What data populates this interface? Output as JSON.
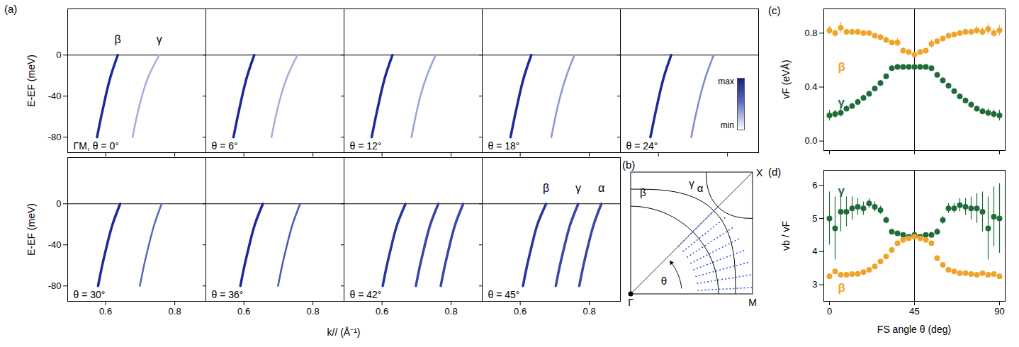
{
  "chart_data": [
    {
      "panel": "(a)",
      "type": "line",
      "xlabel": "k// (Å⁻¹)",
      "ylabel": "E-EF (meV)",
      "xlim": [
        0.49,
        0.89
      ],
      "ylim": [
        -95,
        45
      ],
      "xticks": [
        0.6,
        0.8
      ],
      "yticks": [
        0,
        -40,
        -80
      ],
      "hline": 0,
      "panels": [
        {
          "title": "ΓM, θ = 0°",
          "tick_labels": "y",
          "series": [
            {
              "name": "β",
              "color": "#1b2a9a",
              "x": [
                0.635,
                0.615,
                0.6,
                0.587,
                0.575
              ],
              "y": [
                0,
                -20,
                -40,
                -60,
                -80
              ]
            },
            {
              "name": "γ",
              "color": "#a3acdc",
              "x": [
                0.755,
                0.725,
                0.705,
                0.69,
                0.678
              ],
              "y": [
                0,
                -20,
                -40,
                -60,
                -80
              ]
            }
          ]
        },
        {
          "title": "θ = 6°",
          "tick_labels": false,
          "series": [
            {
              "color": "#1b2a9a",
              "x": [
                0.63,
                0.61,
                0.595,
                0.582,
                0.57
              ],
              "y": [
                0,
                -20,
                -40,
                -60,
                -80
              ]
            },
            {
              "color": "#a3acdc",
              "x": [
                0.755,
                0.727,
                0.707,
                0.692,
                0.68
              ],
              "y": [
                0,
                -20,
                -40,
                -60,
                -80
              ]
            }
          ]
        },
        {
          "title": "θ = 12°",
          "tick_labels": false,
          "series": [
            {
              "color": "#1b2a9a",
              "x": [
                0.63,
                0.61,
                0.595,
                0.582,
                0.57
              ],
              "y": [
                0,
                -20,
                -40,
                -60,
                -80
              ]
            },
            {
              "color": "#97a1d7",
              "x": [
                0.755,
                0.73,
                0.711,
                0.697,
                0.685
              ],
              "y": [
                0,
                -20,
                -40,
                -60,
                -80
              ]
            }
          ]
        },
        {
          "title": "θ = 18°",
          "tick_labels": false,
          "series": [
            {
              "color": "#1b2a9a",
              "x": [
                0.632,
                0.612,
                0.597,
                0.584,
                0.572
              ],
              "y": [
                0,
                -20,
                -40,
                -60,
                -80
              ]
            },
            {
              "color": "#8b96d2",
              "x": [
                0.757,
                0.734,
                0.716,
                0.702,
                0.69
              ],
              "y": [
                0,
                -20,
                -40,
                -60,
                -80
              ]
            }
          ]
        },
        {
          "title": "θ = 24°",
          "tick_labels": false,
          "colorbar_labels": [
            "max",
            "min"
          ],
          "series": [
            {
              "color": "#1b2a9a",
              "x": [
                0.637,
                0.617,
                0.602,
                0.589,
                0.577
              ],
              "y": [
                0,
                -20,
                -40,
                -60,
                -80
              ]
            },
            {
              "color": "#7f8bcc",
              "x": [
                0.76,
                0.738,
                0.721,
                0.707,
                0.695
              ],
              "y": [
                0,
                -20,
                -40,
                -60,
                -80
              ]
            }
          ]
        },
        {
          "title": "θ = 30°",
          "tick_labels": true,
          "series": [
            {
              "color": "#1b2a9a",
              "x": [
                0.642,
                0.62,
                0.604,
                0.59,
                0.578
              ],
              "y": [
                0,
                -20,
                -40,
                -60,
                -80
              ]
            },
            {
              "color": "#5a68bb",
              "x": [
                0.762,
                0.741,
                0.725,
                0.711,
                0.699
              ],
              "y": [
                0,
                -20,
                -40,
                -60,
                -80
              ]
            }
          ]
        },
        {
          "title": "θ = 36°",
          "tick_labels": "x",
          "series": [
            {
              "color": "#1b2a9a",
              "x": [
                0.655,
                0.632,
                0.616,
                0.602,
                0.59
              ],
              "y": [
                0,
                -20,
                -40,
                -60,
                -80
              ]
            },
            {
              "color": "#4a59b3",
              "x": [
                0.763,
                0.741,
                0.725,
                0.711,
                0.699
              ],
              "y": [
                0,
                -20,
                -40,
                -60,
                -80
              ]
            }
          ]
        },
        {
          "title": "θ = 42°",
          "tick_labels": "x",
          "series": [
            {
              "color": "#26369f",
              "x": [
                0.668,
                0.644,
                0.628,
                0.614,
                0.602
              ],
              "y": [
                0,
                -20,
                -40,
                -60,
                -80
              ]
            },
            {
              "color": "#3646a8",
              "x": [
                0.763,
                0.74,
                0.724,
                0.71,
                0.698
              ],
              "y": [
                0,
                -20,
                -40,
                -60,
                -80
              ]
            },
            {
              "color": "#3646a8",
              "x": [
                0.835,
                0.812,
                0.796,
                0.782,
                0.77
              ],
              "y": [
                0,
                -20,
                -40,
                -60,
                -80
              ]
            }
          ]
        },
        {
          "title": "θ = 45°",
          "tick_labels": "x",
          "series": [
            {
              "name": "β",
              "color": "#26369f",
              "x": [
                0.675,
                0.65,
                0.634,
                0.62,
                0.608
              ],
              "y": [
                0,
                -20,
                -40,
                -60,
                -80
              ]
            },
            {
              "name": "γ",
              "color": "#3646a8",
              "x": [
                0.768,
                0.745,
                0.729,
                0.715,
                0.703
              ],
              "y": [
                0,
                -20,
                -40,
                -60,
                -80
              ]
            },
            {
              "name": "α",
              "color": "#3646a8",
              "x": [
                0.835,
                0.813,
                0.797,
                0.783,
                0.771
              ],
              "y": [
                0,
                -20,
                -40,
                -60,
                -80
              ]
            }
          ]
        }
      ]
    },
    {
      "panel": "(b)",
      "type": "diagram",
      "points": [
        "Γ",
        "M",
        "X"
      ],
      "angle_label": "θ",
      "contours": [
        "β",
        "γ",
        "α"
      ]
    },
    {
      "panel": "(c)",
      "type": "scatter",
      "ylabel": "vF (eVÅ)",
      "tick_labels": "y",
      "vline": 45,
      "xlim": [
        -3,
        93
      ],
      "xticks": [
        0,
        45,
        90
      ],
      "ylim": [
        -0.07,
        0.98
      ],
      "yticks": [
        {
          "value": 0,
          "label": "0.0"
        },
        {
          "value": 0.4,
          "label": "0.4"
        },
        {
          "value": 0.8,
          "label": "0.8"
        }
      ],
      "x": [
        0,
        3,
        6,
        9,
        12,
        15,
        18,
        21,
        24,
        27,
        30,
        33,
        36,
        39,
        42,
        45,
        48,
        51,
        54,
        57,
        60,
        63,
        66,
        69,
        72,
        75,
        78,
        81,
        84,
        87,
        90
      ],
      "series": [
        {
          "name": "β",
          "color": "#f0a32b",
          "values": [
            0.82,
            0.8,
            0.84,
            0.81,
            0.81,
            0.81,
            0.8,
            0.8,
            0.78,
            0.77,
            0.75,
            0.73,
            0.73,
            0.67,
            0.66,
            0.64,
            0.66,
            0.67,
            0.72,
            0.74,
            0.76,
            0.78,
            0.79,
            0.8,
            0.81,
            0.81,
            0.82,
            0.81,
            0.83,
            0.8,
            0.82
          ],
          "errors": [
            0.03,
            0.03,
            0.04,
            0.02,
            0.02,
            0.02,
            0.02,
            0.02,
            0.02,
            0.02,
            0.02,
            0.02,
            0.03,
            0.02,
            0.02,
            0.02,
            0.02,
            0.02,
            0.03,
            0.02,
            0.02,
            0.02,
            0.02,
            0.02,
            0.02,
            0.02,
            0.03,
            0.03,
            0.04,
            0.03,
            0.04
          ]
        },
        {
          "name": "γ",
          "color": "#1f6b3a",
          "values": [
            0.19,
            0.2,
            0.21,
            0.24,
            0.26,
            0.29,
            0.32,
            0.35,
            0.39,
            0.43,
            0.48,
            0.54,
            0.55,
            0.55,
            0.55,
            0.55,
            0.55,
            0.55,
            0.54,
            0.49,
            0.45,
            0.41,
            0.37,
            0.33,
            0.3,
            0.27,
            0.24,
            0.22,
            0.21,
            0.2,
            0.19
          ],
          "errors": [
            0.04,
            0.03,
            0.03,
            0.02,
            0.02,
            0.02,
            0.02,
            0.02,
            0.02,
            0.02,
            0.02,
            0.01,
            0.01,
            0.01,
            0.01,
            0.01,
            0.01,
            0.01,
            0.01,
            0.02,
            0.02,
            0.02,
            0.02,
            0.02,
            0.02,
            0.02,
            0.02,
            0.02,
            0.03,
            0.03,
            0.04
          ]
        }
      ]
    },
    {
      "panel": "(d)",
      "type": "scatter",
      "xlabel": "FS angle θ (deg)",
      "ylabel": "vb / vF",
      "tick_labels": true,
      "vline": 45,
      "xlim": [
        -3,
        93
      ],
      "xticks": [
        0,
        45,
        90
      ],
      "ylim": [
        2.5,
        6.45
      ],
      "yticks": [
        3,
        4,
        5,
        6
      ],
      "x": [
        0,
        3,
        6,
        9,
        12,
        15,
        18,
        21,
        24,
        27,
        30,
        33,
        36,
        39,
        42,
        45,
        48,
        51,
        54,
        57,
        60,
        63,
        66,
        69,
        72,
        75,
        78,
        81,
        84,
        87,
        90
      ],
      "series": [
        {
          "name": "γ",
          "color": "#1f6b3a",
          "values": [
            5.0,
            4.7,
            5.2,
            5.2,
            5.3,
            5.35,
            5.3,
            5.45,
            5.35,
            5.25,
            4.95,
            4.6,
            4.55,
            4.5,
            4.45,
            4.5,
            4.45,
            4.5,
            4.5,
            4.6,
            4.95,
            5.3,
            5.3,
            5.4,
            5.35,
            5.3,
            5.3,
            5.2,
            4.7,
            5.05,
            5.0
          ],
          "errors": [
            0.8,
            0.95,
            0.6,
            0.45,
            0.35,
            0.25,
            0.2,
            0.15,
            0.15,
            0.12,
            0.1,
            0.08,
            0.06,
            0.06,
            0.06,
            0.06,
            0.06,
            0.06,
            0.08,
            0.1,
            0.12,
            0.15,
            0.15,
            0.2,
            0.25,
            0.35,
            0.45,
            0.6,
            0.95,
            0.9,
            1.05
          ]
        },
        {
          "name": "β",
          "color": "#f0a32b",
          "values": [
            3.25,
            3.4,
            3.3,
            3.3,
            3.32,
            3.33,
            3.38,
            3.45,
            3.55,
            3.7,
            3.85,
            4.05,
            4.25,
            4.35,
            4.4,
            4.45,
            4.4,
            4.35,
            4.25,
            3.8,
            3.6,
            3.45,
            3.4,
            3.35,
            3.35,
            3.32,
            3.3,
            3.35,
            3.3,
            3.32,
            3.25
          ],
          "errors": [
            0.08,
            0.08,
            0.07,
            0.06,
            0.06,
            0.05,
            0.05,
            0.05,
            0.05,
            0.05,
            0.05,
            0.05,
            0.06,
            0.06,
            0.06,
            0.06,
            0.06,
            0.06,
            0.06,
            0.05,
            0.05,
            0.05,
            0.05,
            0.05,
            0.05,
            0.05,
            0.05,
            0.06,
            0.07,
            0.08,
            0.08
          ]
        }
      ]
    }
  ]
}
